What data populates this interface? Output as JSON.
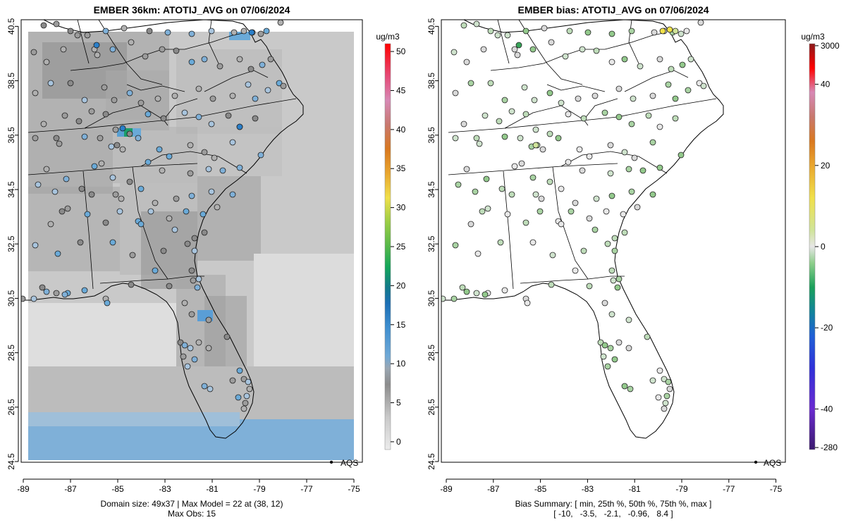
{
  "chart_data": [
    {
      "type": "heatmap",
      "title": "EMBER 36km: ATOTIJ_AVG on 07/06/2024",
      "x_ticks": [
        "-89",
        "-87",
        "-85",
        "-83",
        "-81",
        "-79",
        "-77",
        "-75"
      ],
      "y_ticks": [
        "24.5",
        "26.5",
        "28.5",
        "30.5",
        "32.5",
        "34.5",
        "36.5",
        "38.5",
        "40.5"
      ],
      "xlim": [
        -89.2,
        -74.8
      ],
      "ylim": [
        24.5,
        40.8
      ],
      "colorbar": {
        "units": "ug/m3",
        "ticks": [
          "0",
          "5",
          "10",
          "15",
          "20",
          "25",
          "30",
          "35",
          "40",
          "45",
          "50"
        ],
        "range": [
          -1,
          51
        ]
      },
      "legend": {
        "marker": "•",
        "label": "AQS",
        "placement": "bottom-right"
      },
      "footer": [
        "Domain size: 49x37 | Max Model = 22 at (38, 12)",
        "Max Obs: 15"
      ],
      "model_max": 22,
      "obs_max": 15
    },
    {
      "type": "heatmap",
      "title": "EMBER bias: ATOTIJ_AVG on 07/06/2024",
      "x_ticks": [
        "-89",
        "-87",
        "-85",
        "-83",
        "-81",
        "-79",
        "-77",
        "-75"
      ],
      "y_ticks": [
        "24.5",
        "26.5",
        "28.5",
        "30.5",
        "32.5",
        "34.5",
        "36.5",
        "38.5",
        "40.5"
      ],
      "xlim": [
        -89.2,
        -74.8
      ],
      "ylim": [
        24.5,
        40.8
      ],
      "colorbar": {
        "units": "ug/m3",
        "ticks": [
          "3000",
          "40",
          "20",
          "0",
          "-20",
          "-40",
          "-280"
        ]
      },
      "legend": {
        "marker": "•",
        "label": "AQS",
        "placement": "bottom-right"
      },
      "footer": [
        "Bias Summary: [ min, 25th %, 50th %, 75th %, max ]",
        "[ -10,   -3.5,   -2.1,   -0.96,   8.4 ]"
      ],
      "bias_summary": {
        "min": -10,
        "p25": -3.5,
        "p50": -2.1,
        "p75": -0.96,
        "max": 8.4
      }
    }
  ]
}
